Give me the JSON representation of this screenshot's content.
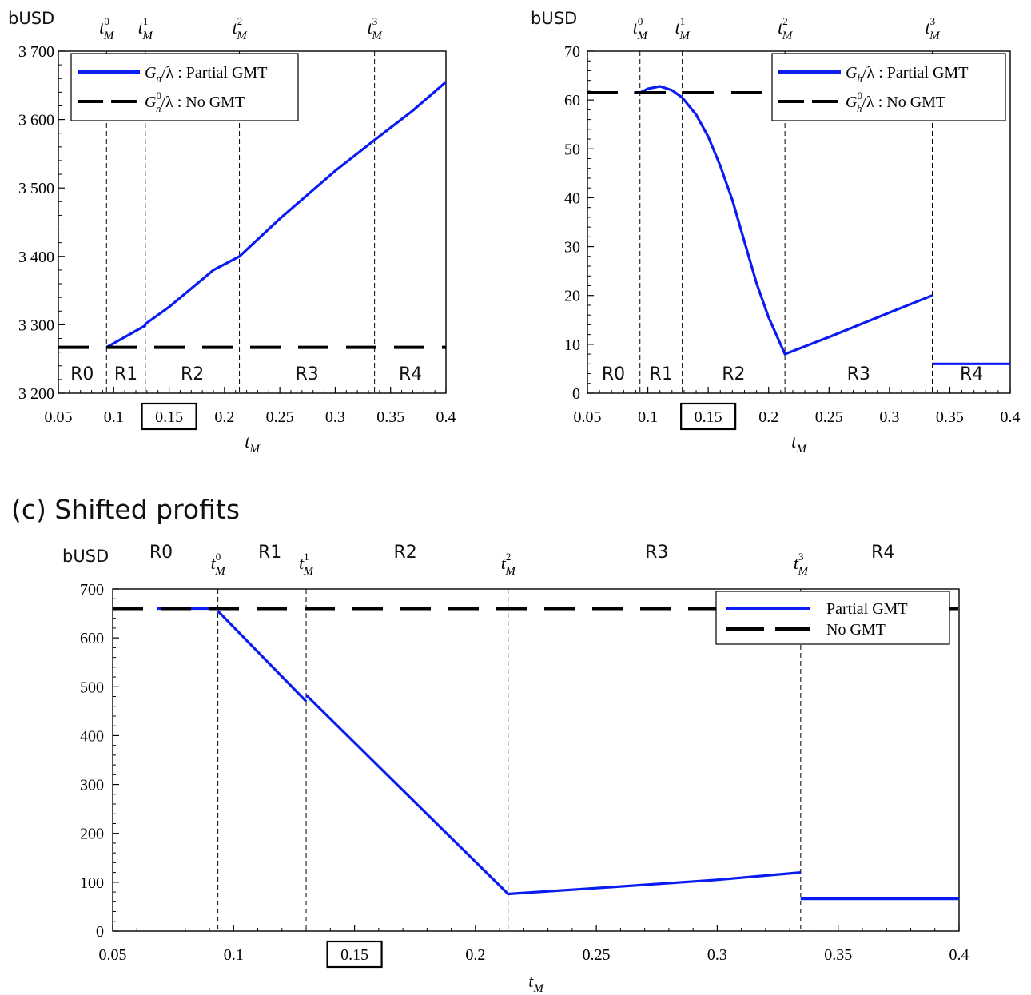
{
  "figure": {
    "panel_c_heading": "(c) Shifted profits",
    "colors": {
      "partial": "#0a1cf2",
      "nogmt": "#000000",
      "axis": "#000000"
    }
  },
  "chart_data": [
    {
      "type": "line",
      "id": "a",
      "unit_label": "bUSD",
      "xlabel": "t_M",
      "xlim": [
        0.05,
        0.4
      ],
      "ylim": [
        3200,
        3700
      ],
      "xticks": [
        0.05,
        0.1,
        0.15,
        0.2,
        0.25,
        0.3,
        0.35,
        0.4
      ],
      "xtick_labels": [
        "0.05",
        "0.1",
        "0.15",
        "0.2",
        "0.25",
        "0.3",
        "0.35",
        "0.4"
      ],
      "yticks": [
        3200,
        3300,
        3400,
        3500,
        3600,
        3700
      ],
      "ytick_labels": [
        "3 200",
        "3 300",
        "3 400",
        "3 500",
        "3 600",
        "3 700"
      ],
      "boxed_xtick": "0.15",
      "thresholds": [
        {
          "x": 0.0935,
          "label": "0"
        },
        {
          "x": 0.1285,
          "label": "1"
        },
        {
          "x": 0.2135,
          "label": "2"
        },
        {
          "x": 0.3355,
          "label": "3"
        }
      ],
      "regions": [
        {
          "label": "R0",
          "x": 0.0715
        },
        {
          "label": "R1",
          "x": 0.111
        },
        {
          "label": "R2",
          "x": 0.171
        },
        {
          "label": "R3",
          "x": 0.2745
        },
        {
          "label": "R4",
          "x": 0.368
        }
      ],
      "legend": [
        {
          "math": "G",
          "sub": "n",
          "text": "/λ : Partial GMT"
        },
        {
          "math": "G",
          "sub": "n",
          "sup": "0",
          "text": "/λ : No GMT"
        }
      ],
      "series": [
        {
          "name": "Partial GMT",
          "style": "solid",
          "x": [
            0.0935,
            0.1285,
            0.1285,
            0.15,
            0.17,
            0.19,
            0.2135,
            0.25,
            0.3,
            0.3355,
            0.37,
            0.4
          ],
          "y": [
            3267,
            3299,
            3301,
            3326,
            3353,
            3380,
            3400,
            3455,
            3525,
            3570,
            3613,
            3655
          ]
        },
        {
          "name": "No GMT",
          "style": "dash",
          "x": [
            0.05,
            0.4
          ],
          "y": [
            3267,
            3267
          ]
        }
      ]
    },
    {
      "type": "line",
      "id": "b",
      "unit_label": "bUSD",
      "xlabel": "t_M",
      "xlim": [
        0.05,
        0.4
      ],
      "ylim": [
        0,
        70
      ],
      "xticks": [
        0.05,
        0.1,
        0.15,
        0.2,
        0.25,
        0.3,
        0.35,
        0.4
      ],
      "xtick_labels": [
        "0.05",
        "0.1",
        "0.15",
        "0.2",
        "0.25",
        "0.3",
        "0.35",
        "0.4"
      ],
      "yticks": [
        0,
        10,
        20,
        30,
        40,
        50,
        60,
        70
      ],
      "ytick_labels": [
        "0",
        "10",
        "20",
        "30",
        "40",
        "50",
        "60",
        "70"
      ],
      "boxed_xtick": "0.15",
      "thresholds": [
        {
          "x": 0.0935,
          "label": "0"
        },
        {
          "x": 0.1285,
          "label": "1"
        },
        {
          "x": 0.2135,
          "label": "2"
        },
        {
          "x": 0.3355,
          "label": "3"
        }
      ],
      "regions": [
        {
          "label": "R0",
          "x": 0.0715
        },
        {
          "label": "R1",
          "x": 0.111
        },
        {
          "label": "R2",
          "x": 0.171
        },
        {
          "label": "R3",
          "x": 0.2745
        },
        {
          "label": "R4",
          "x": 0.368
        }
      ],
      "legend": [
        {
          "math": "G",
          "sub": "h",
          "text": "/λ : Partial GMT"
        },
        {
          "math": "G",
          "sub": "h",
          "sup": "0",
          "text": "/λ : No GMT"
        }
      ],
      "series": [
        {
          "name": "Partial GMT",
          "style": "solid",
          "x": [
            0.0885,
            0.0935,
            0.1,
            0.11,
            0.12,
            0.1285,
            0.14,
            0.15,
            0.16,
            0.17,
            0.18,
            0.19,
            0.2,
            0.2135,
            0.25,
            0.3,
            0.3355,
            null,
            0.3355,
            0.4
          ],
          "y": [
            61.5,
            61.5,
            62.3,
            62.8,
            62.0,
            60.5,
            57.0,
            52.5,
            46.5,
            39.5,
            31.0,
            22.5,
            15.5,
            8.0,
            11.5,
            16.5,
            20.0,
            null,
            6.0,
            6.0
          ]
        },
        {
          "name": "No GMT",
          "style": "dash",
          "x": [
            0.05,
            0.4
          ],
          "y": [
            61.5,
            61.5
          ]
        }
      ]
    },
    {
      "type": "line",
      "id": "c",
      "title": "(c) Shifted profits",
      "unit_label": "bUSD",
      "xlabel": "t_M",
      "xlim": [
        0.05,
        0.4
      ],
      "ylim": [
        0,
        700
      ],
      "xticks": [
        0.05,
        0.1,
        0.15,
        0.2,
        0.25,
        0.3,
        0.35,
        0.4
      ],
      "xtick_labels": [
        "0.05",
        "0.1",
        "0.15",
        "0.2",
        "0.25",
        "0.3",
        "0.35",
        "0.4"
      ],
      "yticks": [
        0,
        100,
        200,
        300,
        400,
        500,
        600,
        700
      ],
      "ytick_labels": [
        "0",
        "100",
        "200",
        "300",
        "400",
        "500",
        "600",
        "700"
      ],
      "boxed_xtick": "0.15",
      "thresholds": [
        {
          "x": 0.0935,
          "label": "0"
        },
        {
          "x": 0.13,
          "label": "1"
        },
        {
          "x": 0.2135,
          "label": "2"
        },
        {
          "x": 0.3345,
          "label": "3"
        }
      ],
      "regions": [
        {
          "label": "R0",
          "x": 0.07
        },
        {
          "label": "R1",
          "x": 0.115
        },
        {
          "label": "R2",
          "x": 0.171
        },
        {
          "label": "R3",
          "x": 0.275
        },
        {
          "label": "R4",
          "x": 0.3685
        }
      ],
      "legend": [
        {
          "text": "Partial GMT"
        },
        {
          "text": "No GMT"
        }
      ],
      "series": [
        {
          "name": "Partial GMT",
          "style": "solid",
          "x": [
            0.0685,
            0.0935,
            null,
            0.0935,
            0.13,
            null,
            0.13,
            0.2135,
            0.25,
            0.3,
            0.3345,
            null,
            0.3345,
            0.4
          ],
          "y": [
            660,
            660,
            null,
            655,
            470,
            null,
            483,
            76,
            88,
            105,
            120,
            null,
            66,
            66
          ]
        },
        {
          "name": "No GMT",
          "style": "dash",
          "x": [
            0.05,
            0.4
          ],
          "y": [
            660,
            660
          ]
        }
      ]
    }
  ]
}
